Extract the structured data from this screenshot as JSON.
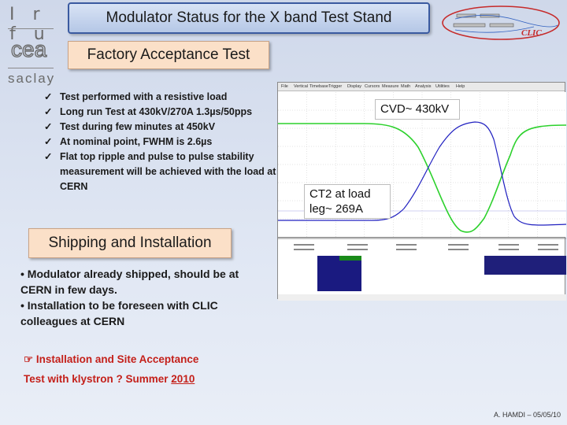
{
  "header": {
    "title": "Modulator Status for the X band Test Stand",
    "logos": {
      "irfu": "Irfu",
      "cea": "cea",
      "saclay": "saclay",
      "clic": "CLIC"
    }
  },
  "factory": {
    "heading": "Factory Acceptance Test",
    "items": [
      "Test performed with a resistive load",
      "Long run Test at 430kV/270A 1.3µs/50pps",
      "Test during few minutes at 450kV",
      "At nominal point, FWHM is 2.6µs",
      "Flat top ripple and pulse to pulse stability measurement  will be achieved with the load at CERN"
    ]
  },
  "shipping": {
    "heading": "Shipping and Installation",
    "paragraphs": [
      "• Modulator already shipped, should be at CERN in few days.",
      "• Installation to be foreseen with CLIC colleagues at CERN"
    ]
  },
  "install": {
    "line1": "Installation and Site Acceptance",
    "line2_prefix": "Test with klystron  ? Summer ",
    "line2_year": "2010"
  },
  "scope": {
    "menu": [
      "File",
      "Vertical",
      "Timebase",
      "Trigger",
      "Display",
      "Cursors",
      "Measure",
      "Math",
      "Analysis",
      "Utilities",
      "Help"
    ],
    "annotations": {
      "cvd": "CVD~ 430kV",
      "ct2_line1": "CT2 at load",
      "ct2_line2": "leg~ 269A"
    },
    "colors": {
      "green": "#2cd12c",
      "blue": "#2020c0",
      "grid": "#c8c8c8"
    }
  },
  "footer": {
    "author": "A. HAMDI – 05/05/10"
  }
}
